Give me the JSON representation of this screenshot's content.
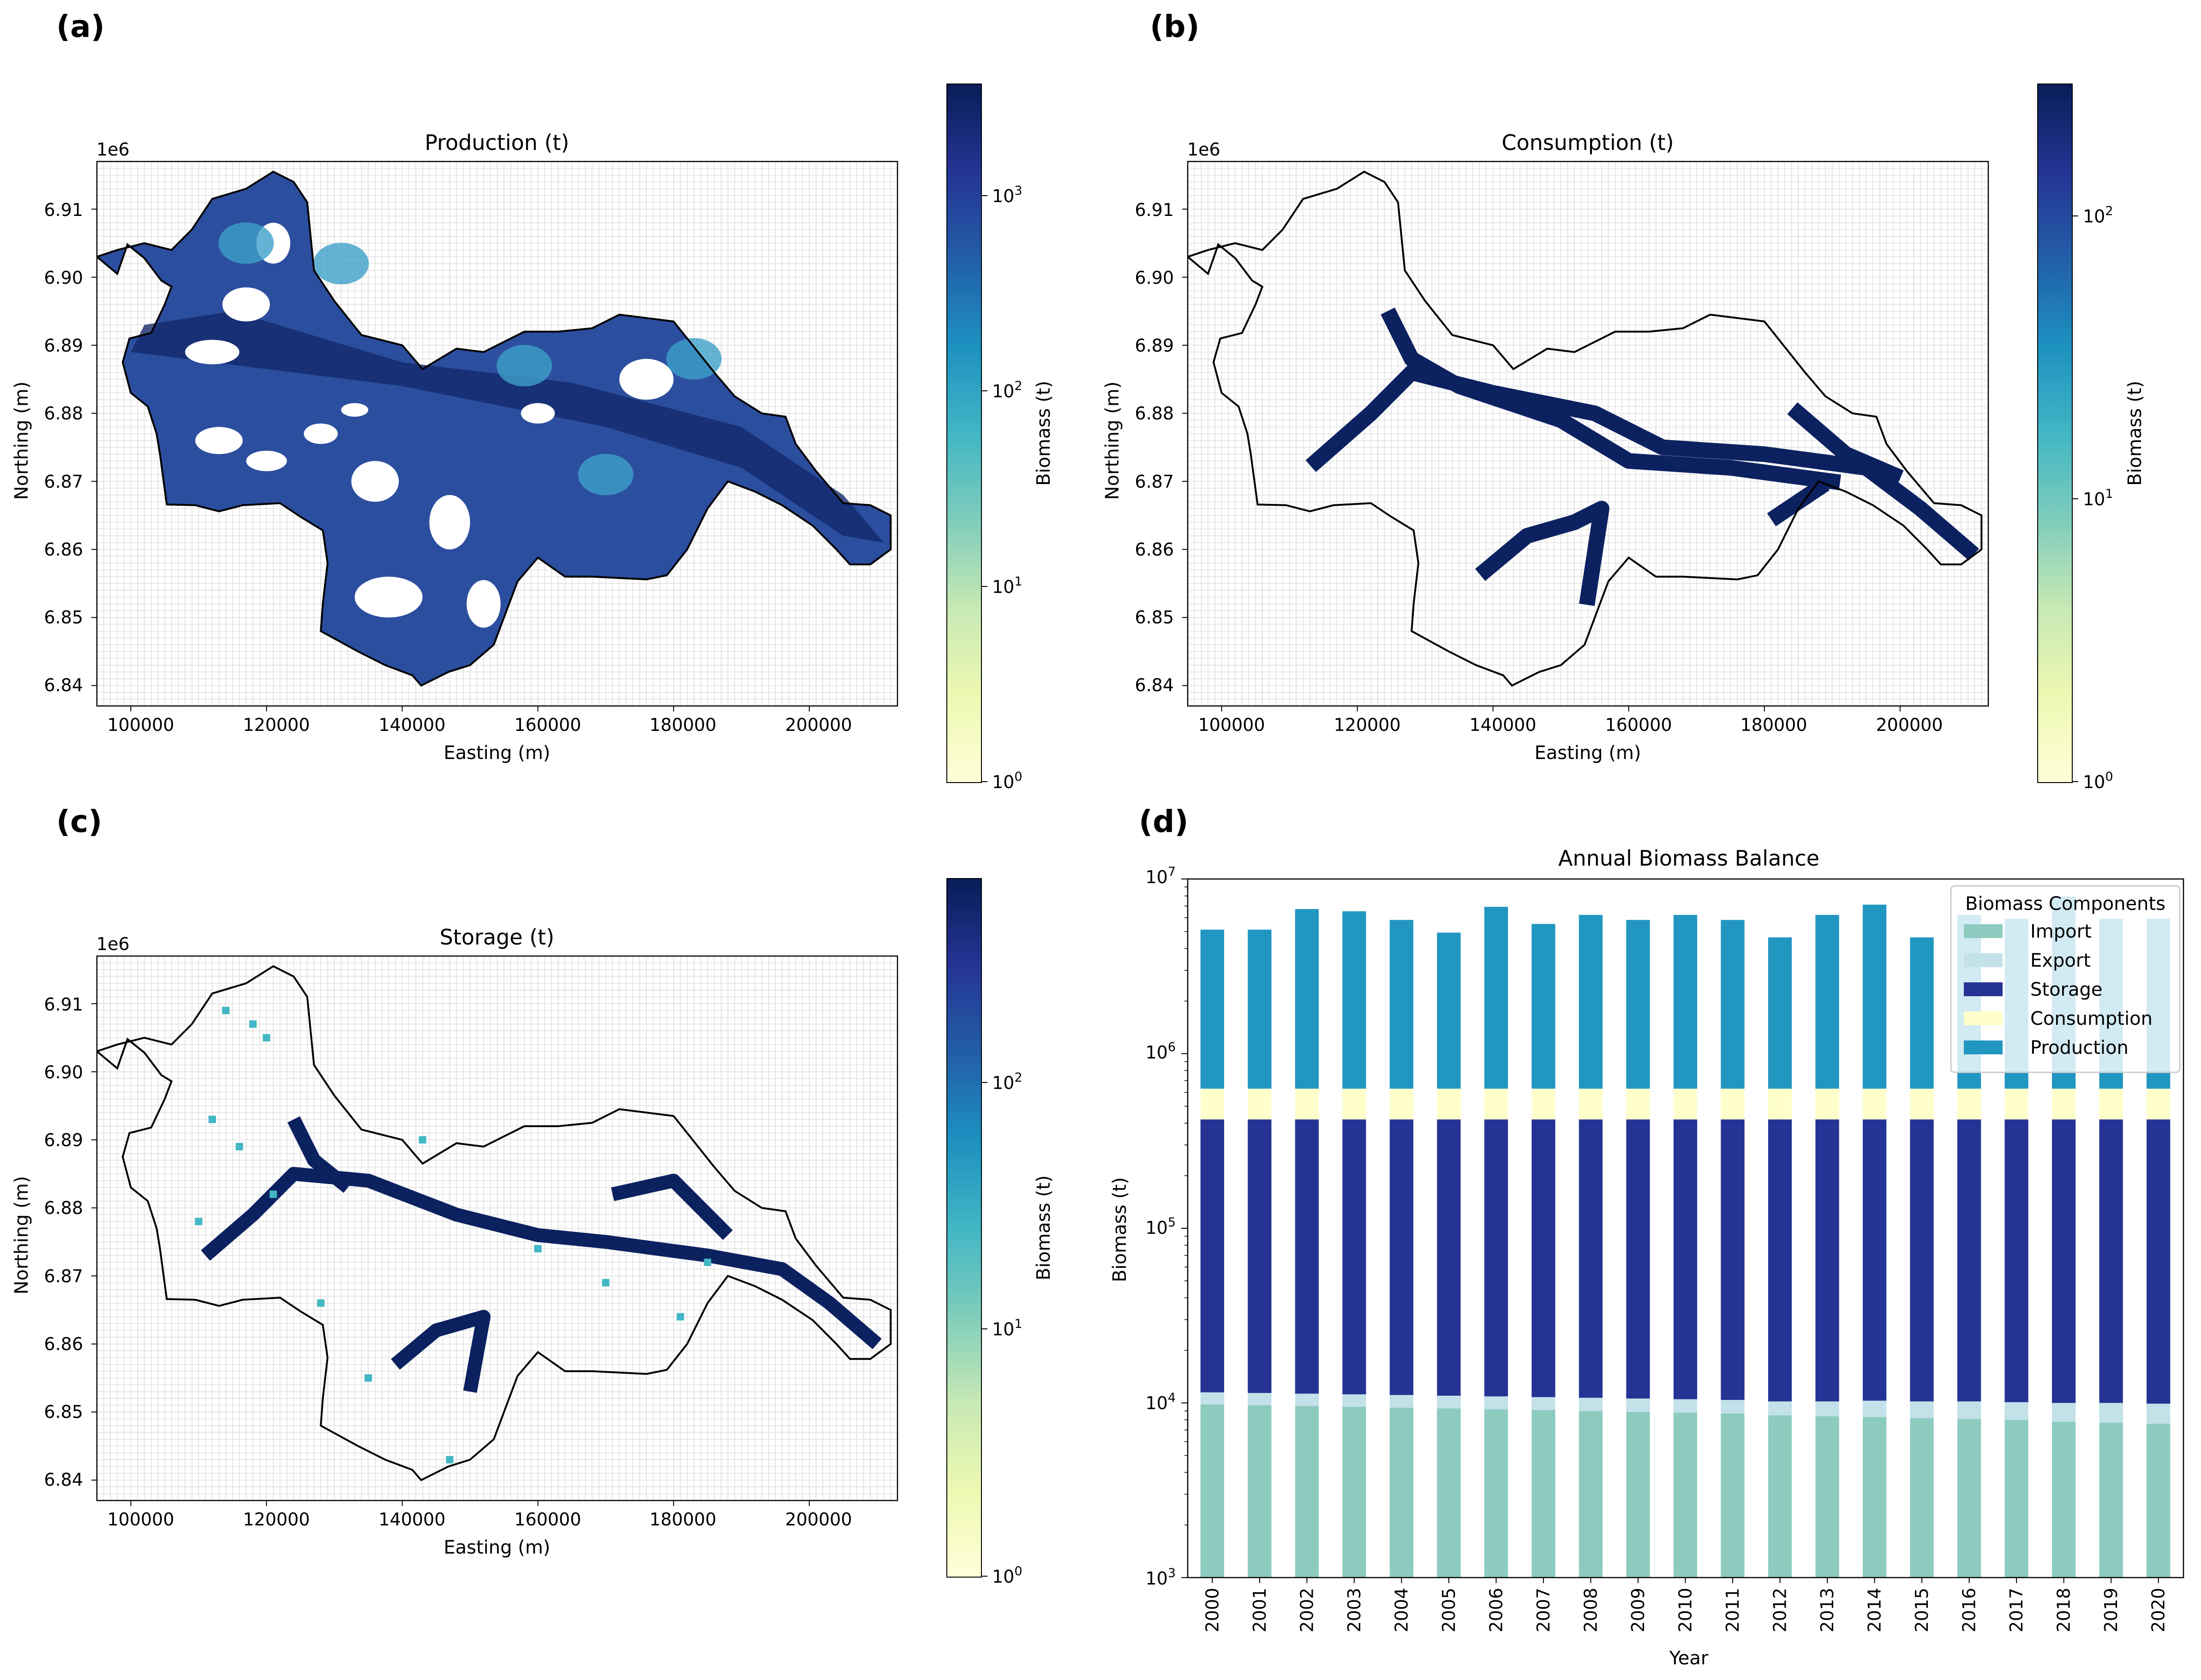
{
  "panel_labels": [
    "(a)",
    "(b)",
    "(c)",
    "(d)"
  ],
  "colors": {
    "ylgnbu_low": "#ffffd9",
    "ylgnbu_mid": "#41b6c4",
    "ylgnbu_high": "#081d58",
    "import": "#8dcbbf",
    "export": "#c2e1e9",
    "storage": "#253494",
    "consumption": "#ffffcc",
    "production": "#2196c1"
  },
  "maps": [
    {
      "title": "Production (t)",
      "xlabel": "Easting (m)",
      "ylabel": "Northing (m)",
      "offset": "1e6",
      "xticks": [
        "100000",
        "120000",
        "140000",
        "160000",
        "180000",
        "200000"
      ],
      "yticks": [
        "6.84",
        "6.85",
        "6.86",
        "6.87",
        "6.88",
        "6.89",
        "6.90",
        "6.91"
      ],
      "colorbar": {
        "label": "Biomass (t)",
        "scale": "log",
        "range": [
          1,
          3500
        ],
        "ticks": [
          {
            "base": "10",
            "exp": "0"
          },
          {
            "base": "10",
            "exp": "1"
          },
          {
            "base": "10",
            "exp": "2"
          },
          {
            "base": "10",
            "exp": "3"
          }
        ]
      }
    },
    {
      "title": "Consumption (t)",
      "xlabel": "Easting (m)",
      "ylabel": "Northing (m)",
      "offset": "1e6",
      "xticks": [
        "100000",
        "120000",
        "140000",
        "160000",
        "180000",
        "200000"
      ],
      "yticks": [
        "6.84",
        "6.85",
        "6.86",
        "6.87",
        "6.88",
        "6.89",
        "6.90",
        "6.91"
      ],
      "colorbar": {
        "label": "Biomass (t)",
        "scale": "log",
        "range": [
          1,
          300
        ],
        "ticks": [
          {
            "base": "10",
            "exp": "0"
          },
          {
            "base": "10",
            "exp": "1"
          },
          {
            "base": "10",
            "exp": "2"
          }
        ]
      }
    },
    {
      "title": "Storage (t)",
      "xlabel": "Easting (m)",
      "ylabel": "Northing (m)",
      "offset": "1e6",
      "xticks": [
        "100000",
        "120000",
        "140000",
        "160000",
        "180000",
        "200000"
      ],
      "yticks": [
        "6.84",
        "6.85",
        "6.86",
        "6.87",
        "6.88",
        "6.89",
        "6.90",
        "6.91"
      ],
      "colorbar": {
        "label": "Biomass (t)",
        "scale": "log",
        "range": [
          1,
          700
        ],
        "ticks": [
          {
            "base": "10",
            "exp": "0"
          },
          {
            "base": "10",
            "exp": "1"
          },
          {
            "base": "10",
            "exp": "2"
          }
        ]
      }
    }
  ],
  "chart_data": [
    {
      "type": "heatmap",
      "title": "Production (t)",
      "xlabel": "Easting (m)",
      "ylabel": "Northing (m)",
      "xlim": [
        95000,
        213000
      ],
      "ylim": [
        6837000,
        6917000
      ],
      "colorbar_label": "Biomass (t)",
      "color_scale": "log"
    },
    {
      "type": "heatmap",
      "title": "Consumption (t)",
      "xlabel": "Easting (m)",
      "ylabel": "Northing (m)",
      "xlim": [
        95000,
        213000
      ],
      "ylim": [
        6837000,
        6917000
      ],
      "colorbar_label": "Biomass (t)",
      "color_scale": "log"
    },
    {
      "type": "heatmap",
      "title": "Storage (t)",
      "xlabel": "Easting (m)",
      "ylabel": "Northing (m)",
      "xlim": [
        95000,
        213000
      ],
      "ylim": [
        6837000,
        6917000
      ],
      "colorbar_label": "Biomass (t)",
      "color_scale": "log"
    },
    {
      "type": "bar",
      "stacked": true,
      "title": "Annual Biomass Balance",
      "xlabel": "Year",
      "ylabel": "Biomass (t)",
      "yscale": "log",
      "ylim": [
        1000,
        10000000
      ],
      "yticks": [
        {
          "base": "10",
          "exp": "3"
        },
        {
          "base": "10",
          "exp": "4"
        },
        {
          "base": "10",
          "exp": "5"
        },
        {
          "base": "10",
          "exp": "6"
        },
        {
          "base": "10",
          "exp": "7"
        }
      ],
      "legend_title": "Biomass Components",
      "legend_position": "top-right",
      "categories": [
        "2000",
        "2001",
        "2002",
        "2003",
        "2004",
        "2005",
        "2006",
        "2007",
        "2008",
        "2009",
        "2010",
        "2011",
        "2012",
        "2013",
        "2014",
        "2015",
        "2016",
        "2017",
        "2018",
        "2019",
        "2020"
      ],
      "series": [
        {
          "name": "Import",
          "color": "#8dcbbf",
          "values": [
            9800,
            9700,
            9600,
            9500,
            9400,
            9300,
            9200,
            9100,
            9000,
            8900,
            8800,
            8700,
            8500,
            8400,
            8300,
            8200,
            8100,
            8000,
            7800,
            7700,
            7600
          ]
        },
        {
          "name": "Export",
          "color": "#c2e1e9",
          "values": [
            1700,
            1700,
            1700,
            1700,
            1700,
            1700,
            1700,
            1700,
            1700,
            1700,
            1700,
            1700,
            1700,
            1800,
            2000,
            2000,
            2100,
            2100,
            2200,
            2300,
            2300
          ]
        },
        {
          "name": "Storage",
          "color": "#253494",
          "values": [
            408500,
            408600,
            408700,
            408800,
            408900,
            409000,
            409100,
            409200,
            409300,
            409400,
            409500,
            409600,
            409800,
            409800,
            409700,
            409800,
            409800,
            409900,
            410000,
            410000,
            410100
          ]
        },
        {
          "name": "Consumption",
          "color": "#ffffcc",
          "values": [
            210000,
            210000,
            210000,
            210000,
            210000,
            210000,
            210000,
            210000,
            210000,
            210000,
            210000,
            210000,
            210000,
            210000,
            210000,
            210000,
            210000,
            210000,
            210000,
            210000,
            210000
          ]
        },
        {
          "name": "Production",
          "color": "#2196c1",
          "values": [
            4500000,
            4500000,
            6100000,
            5900000,
            5200000,
            4300000,
            6300000,
            4900000,
            5600000,
            5200000,
            5600000,
            5200000,
            4000000,
            5600000,
            6500000,
            4000000,
            5600000,
            5300000,
            7300000,
            5300000,
            5300000
          ]
        }
      ]
    }
  ]
}
